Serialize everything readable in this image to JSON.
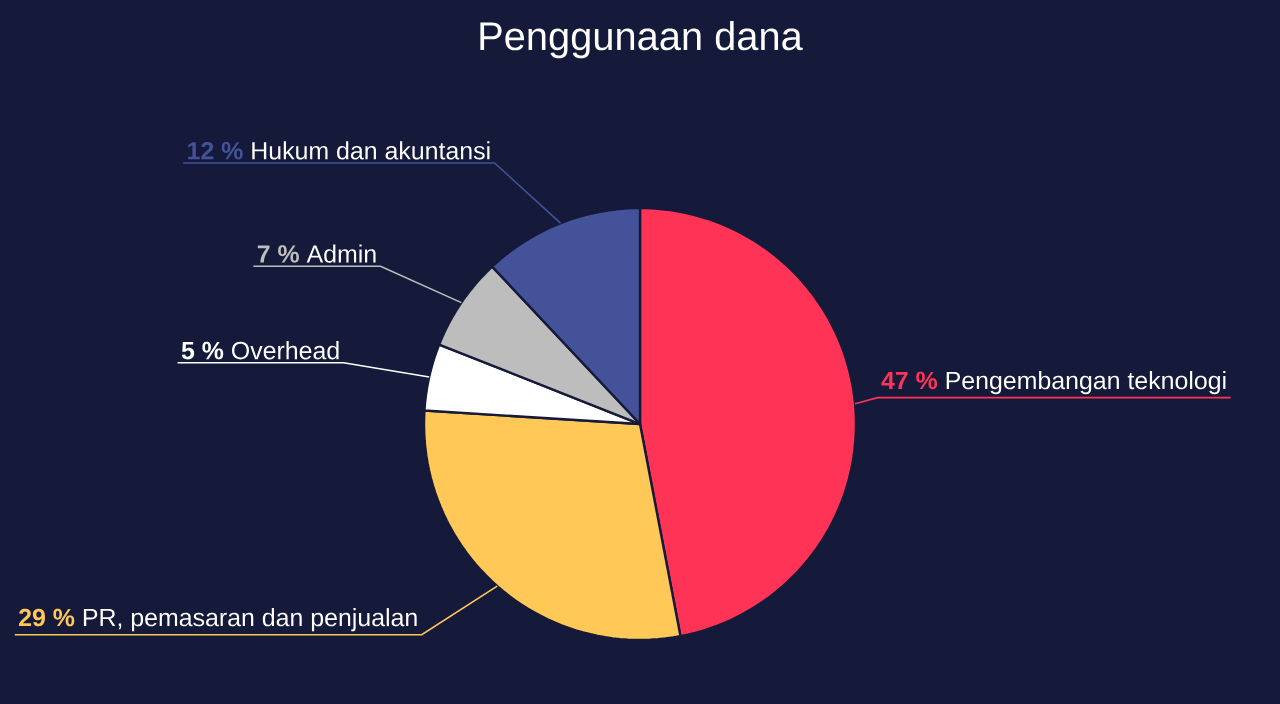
{
  "chart_data": {
    "type": "pie",
    "title": "Penggunaan dana",
    "categories": [
      "Pengembangan teknologi",
      "PR, pemasaran dan penjualan",
      "Overhead",
      "Admin",
      "Hukum dan akuntansi"
    ],
    "values": [
      47,
      29,
      5,
      7,
      12
    ],
    "value_labels": [
      "47 %",
      "29 %",
      "5 %",
      "7 %",
      "12 %"
    ],
    "colors": [
      "#ff3355",
      "#ffc857",
      "#ffffff",
      "#bdbdbd",
      "#44529a"
    ]
  }
}
